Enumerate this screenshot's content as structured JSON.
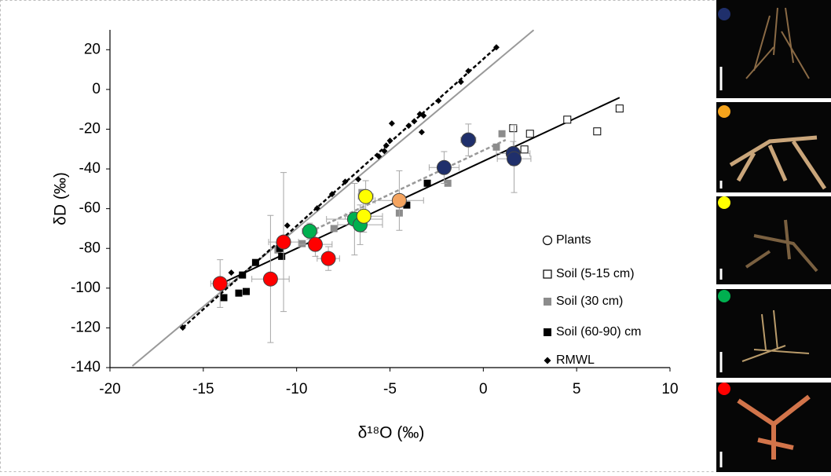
{
  "chart_data": {
    "type": "scatter",
    "xlabel": "δ¹⁸O (‰)",
    "ylabel": "δD (‰)",
    "xlim": [
      -20,
      10
    ],
    "ylim": [
      -140,
      30
    ],
    "xticks": [
      -20,
      -15,
      -10,
      -5,
      0,
      5,
      10
    ],
    "yticks": [
      -140,
      -120,
      -100,
      -80,
      -60,
      -40,
      -20,
      0,
      20
    ],
    "grid": false,
    "legend": "lower right",
    "series": [
      {
        "name": "Plants",
        "marker": "circle",
        "x": [
          -14.1,
          -10.7,
          -11.4,
          -9.0,
          -8.3,
          -9.3,
          -6.9,
          -6.6,
          -6.3,
          -6.4,
          -4.5,
          -2.1,
          -0.8,
          1.6,
          1.65
        ],
        "y": [
          -97.7,
          -76.8,
          -95.4,
          -78,
          -85.1,
          -71.3,
          -65.3,
          -68.1,
          -53.9,
          -63.8,
          -55.9,
          -39.3,
          -25.4,
          -32.2,
          -34.9
        ],
        "xerr": [
          0.5,
          0.8,
          1.0,
          0.9,
          0.6,
          0.4,
          1.5,
          1.2,
          0.4,
          1.0,
          1.3,
          0.8,
          0.4,
          0.9,
          0.9
        ],
        "yerr": [
          12,
          35,
          32,
          6,
          6,
          4,
          18,
          10,
          8,
          8,
          15,
          8,
          8,
          6,
          17
        ],
        "colors": [
          "#ff0000",
          "#ff0000",
          "#ff0000",
          "#ff0000",
          "#ff0000",
          "#00b050",
          "#00b050",
          "#00b050",
          "#ffff00",
          "#ffff00",
          "#f4a460",
          "#1f2f6b",
          "#1f2f6b",
          "#1f2f6b",
          "#1f2f6b"
        ]
      },
      {
        "name": "Soil (5-15 cm)",
        "marker": "square-open",
        "color": "#000000",
        "x": [
          1.6,
          2.5,
          2.2,
          4.5,
          6.1,
          7.3
        ],
        "y": [
          -19.5,
          -22.3,
          -30.2,
          -15.2,
          -21.1,
          -9.6
        ]
      },
      {
        "name": "Soil (30 cm)",
        "marker": "square",
        "color": "#8c8c8c",
        "x": [
          1.0,
          0.7,
          -1.9,
          -4.5,
          -6.5,
          -8.0,
          -9.7,
          -11.0
        ],
        "y": [
          -22.3,
          -29,
          -47.2,
          -62.2,
          -51.9,
          -70,
          -77.6,
          -80.8
        ]
      },
      {
        "name": "Soil (60-90) cm",
        "marker": "square",
        "color": "#000000",
        "x": [
          -13.9,
          -13.1,
          -12.7,
          -12.9,
          -12.2,
          -10.9,
          -10.8,
          -4.1,
          -3.0
        ],
        "y": [
          -104.8,
          -102.5,
          -101.7,
          -93.4,
          -87.1,
          -80,
          -84,
          -58.2,
          -47.2
        ]
      },
      {
        "name": "RMWL",
        "marker": "diamond",
        "color": "#000000",
        "x": [
          -16.1,
          -13.5,
          -10.5,
          -8.9,
          -8.1,
          -7.4,
          -6.7,
          -5.6,
          -5.3,
          -5.2,
          -5.0,
          -4.9,
          -4.0,
          -3.7,
          -3.4,
          -3.2,
          -3.3,
          -2.4,
          -1.2,
          -0.8,
          0.7
        ],
        "y": [
          -119.9,
          -92.2,
          -68.5,
          -59.8,
          -52.7,
          -46.4,
          -45.2,
          -33.7,
          -31,
          -28.2,
          -25.8,
          -17.1,
          -18.3,
          -16,
          -12.4,
          -13.2,
          -21.5,
          -5.7,
          3.8,
          9.3,
          21.2
        ]
      }
    ],
    "fit_lines": [
      {
        "x": [
          -18.8,
          2.7
        ],
        "y": [
          -139.2,
          29.9
        ],
        "color": "#999999",
        "dash": false
      },
      {
        "x": [
          -16.1,
          0.7
        ],
        "y": [
          -119.9,
          21.2
        ],
        "color": "#000000",
        "dash": true
      },
      {
        "x": [
          -14.1,
          7.3
        ],
        "y": [
          -98,
          -4.1
        ],
        "color": "#000000",
        "dash": false
      },
      {
        "x": [
          -9.3,
          1.2
        ],
        "y": [
          -71.7,
          -25.4
        ],
        "color": "#999999",
        "dash": true
      }
    ]
  }
}
